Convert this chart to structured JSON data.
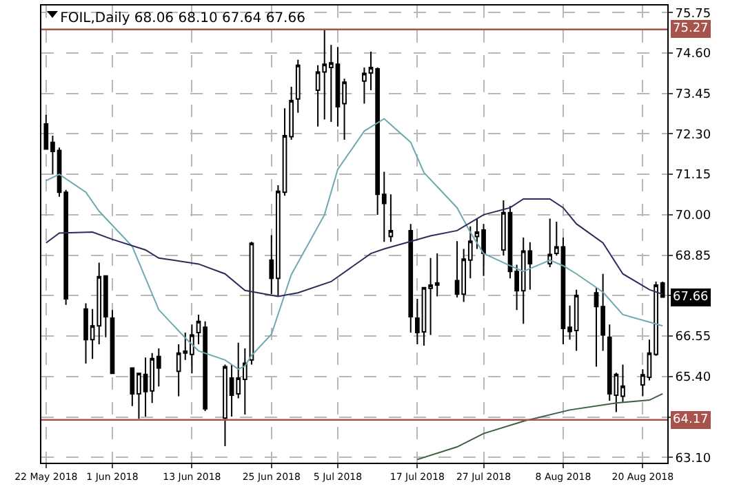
{
  "chart_data": {
    "type": "candlestick",
    "title": "FOIL,Daily 68.06 68.10 67.64 67.66",
    "x": [
      "2018-05-22",
      "2018-05-23",
      "2018-05-24",
      "2018-05-25",
      "2018-05-28",
      "2018-05-29",
      "2018-05-30",
      "2018-05-31",
      "2018-06-01",
      "2018-06-04",
      "2018-06-05",
      "2018-06-06",
      "2018-06-07",
      "2018-06-08",
      "2018-06-11",
      "2018-06-12",
      "2018-06-13",
      "2018-06-14",
      "2018-06-15",
      "2018-06-18",
      "2018-06-19",
      "2018-06-20",
      "2018-06-21",
      "2018-06-22",
      "2018-06-25",
      "2018-06-26",
      "2018-06-27",
      "2018-06-28",
      "2018-06-29",
      "2018-07-02",
      "2018-07-03",
      "2018-07-04",
      "2018-07-05",
      "2018-07-06",
      "2018-07-09",
      "2018-07-10",
      "2018-07-11",
      "2018-07-12",
      "2018-07-13",
      "2018-07-16",
      "2018-07-17",
      "2018-07-18",
      "2018-07-19",
      "2018-07-20",
      "2018-07-23",
      "2018-07-24",
      "2018-07-25",
      "2018-07-26",
      "2018-07-27",
      "2018-07-30",
      "2018-07-31",
      "2018-08-01",
      "2018-08-02",
      "2018-08-03",
      "2018-08-06",
      "2018-08-07",
      "2018-08-08",
      "2018-08-09",
      "2018-08-10",
      "2018-08-13",
      "2018-08-14",
      "2018-08-15",
      "2018-08-16",
      "2018-08-17",
      "2018-08-20",
      "2018-08-21",
      "2018-08-22",
      "2018-08-23"
    ],
    "ohlc": [
      [
        72.58,
        72.84,
        71.85,
        71.87
      ],
      [
        72.06,
        72.25,
        71.16,
        71.8
      ],
      [
        71.83,
        71.91,
        70.51,
        70.64
      ],
      [
        70.64,
        70.71,
        67.44,
        67.61
      ],
      [
        67.32,
        67.48,
        65.77,
        66.45
      ],
      [
        66.45,
        67.32,
        65.9,
        66.84
      ],
      [
        66.84,
        68.64,
        66.32,
        68.24
      ],
      [
        68.26,
        68.26,
        66.52,
        67.1
      ],
      [
        67.06,
        67.29,
        65.49,
        65.49
      ],
      [
        65.64,
        65.64,
        64.56,
        64.91
      ],
      [
        64.91,
        65.51,
        64.2,
        65.49
      ],
      [
        65.46,
        65.94,
        64.26,
        64.97
      ],
      [
        64.99,
        66.07,
        64.65,
        65.91
      ],
      [
        65.97,
        66.2,
        65.12,
        65.64
      ],
      [
        65.55,
        66.32,
        64.84,
        66.07
      ],
      [
        66.07,
        66.65,
        65.87,
        66.12
      ],
      [
        66.03,
        66.88,
        65.49,
        66.58
      ],
      [
        66.65,
        67.16,
        66.32,
        66.97
      ],
      [
        66.8,
        66.97,
        64.42,
        64.48
      ],
      [
        64.22,
        65.74,
        63.42,
        65.68
      ],
      [
        65.36,
        65.74,
        64.26,
        64.87
      ],
      [
        64.91,
        66.36,
        64.78,
        65.36
      ],
      [
        65.32,
        66.2,
        64.32,
        65.78
      ],
      [
        65.87,
        69.23,
        65.74,
        69.19
      ],
      [
        68.71,
        69.42,
        67.74,
        68.19
      ],
      [
        68.19,
        70.84,
        67.68,
        70.67
      ],
      [
        70.64,
        73.03,
        70.54,
        72.25
      ],
      [
        72.22,
        73.64,
        72.13,
        73.25
      ],
      [
        73.29,
        74.41,
        72.9,
        74.25
      ],
      [
        73.54,
        74.25,
        72.51,
        74.06
      ],
      [
        74.06,
        75.26,
        72.71,
        74.28
      ],
      [
        74.19,
        74.83,
        72.64,
        74.32
      ],
      [
        74.28,
        74.77,
        72.51,
        73.07
      ],
      [
        73.16,
        73.87,
        72.13,
        73.77
      ],
      [
        73.8,
        74.19,
        73.16,
        74.02
      ],
      [
        74.03,
        74.64,
        73.54,
        74.19
      ],
      [
        74.15,
        74.19,
        70.0,
        70.58
      ],
      [
        70.58,
        71.22,
        69.23,
        70.32
      ],
      [
        69.38,
        70.58,
        69.23,
        69.55
      ],
      [
        69.55,
        69.74,
        66.65,
        67.1
      ],
      [
        67.06,
        67.61,
        66.32,
        66.65
      ],
      [
        66.67,
        67.93,
        66.28,
        67.93
      ],
      [
        67.91,
        68.77,
        66.58,
        68.0
      ],
      [
        68.0,
        68.9,
        67.68,
        68.06
      ],
      [
        68.13,
        69.25,
        67.65,
        67.74
      ],
      [
        67.74,
        69.03,
        67.52,
        68.74
      ],
      [
        68.71,
        69.67,
        68.19,
        69.25
      ],
      [
        69.38,
        69.89,
        69.03,
        69.51
      ],
      [
        69.57,
        69.74,
        68.26,
        68.9
      ],
      [
        69.0,
        70.41,
        68.84,
        70.06
      ],
      [
        70.06,
        70.25,
        68.19,
        68.39
      ],
      [
        68.39,
        68.58,
        67.29,
        67.84
      ],
      [
        67.84,
        69.35,
        66.9,
        68.97
      ],
      [
        68.97,
        69.22,
        67.87,
        68.61
      ],
      [
        68.61,
        69.89,
        68.51,
        68.87
      ],
      [
        68.9,
        69.8,
        68.84,
        69.09
      ],
      [
        69.09,
        69.35,
        66.32,
        66.77
      ],
      [
        66.8,
        67.42,
        66.45,
        66.68
      ],
      [
        66.71,
        67.87,
        66.13,
        67.71
      ],
      [
        67.78,
        67.93,
        65.68,
        67.39
      ],
      [
        67.39,
        68.32,
        66.13,
        66.58
      ],
      [
        66.52,
        66.88,
        64.71,
        64.91
      ],
      [
        64.87,
        65.51,
        64.39,
        65.46
      ],
      [
        64.84,
        65.74,
        64.68,
        65.13
      ],
      [
        65.16,
        65.61,
        64.84,
        65.45
      ],
      [
        65.38,
        66.45,
        65.29,
        66.07
      ],
      [
        66.03,
        68.1,
        65.99,
        68.0
      ],
      [
        68.06,
        68.1,
        67.64,
        67.66
      ]
    ],
    "series": [
      {
        "type": "line",
        "color": "#6fa8b0",
        "x": [
          "2018-05-22",
          "2018-05-24",
          "2018-05-28",
          "2018-05-30",
          "2018-06-04",
          "2018-06-06",
          "2018-06-08",
          "2018-06-12",
          "2018-06-14",
          "2018-06-18",
          "2018-06-20",
          "2018-06-21",
          "2018-06-22",
          "2018-06-25",
          "2018-06-28",
          "2018-07-03",
          "2018-07-05",
          "2018-07-09",
          "2018-07-12",
          "2018-07-16",
          "2018-07-18",
          "2018-07-23",
          "2018-07-25",
          "2018-07-27",
          "2018-07-31",
          "2018-08-02",
          "2018-08-06",
          "2018-08-08",
          "2018-08-10",
          "2018-08-14",
          "2018-08-17",
          "2018-08-21",
          "2018-08-23"
        ],
        "values": [
          70.97,
          71.15,
          70.64,
          70.1,
          69.1,
          68.2,
          67.3,
          66.5,
          66.13,
          65.87,
          65.61,
          65.7,
          66.0,
          66.6,
          68.3,
          70.0,
          71.29,
          72.38,
          72.73,
          72.06,
          71.2,
          70.2,
          69.5,
          68.9,
          68.55,
          68.39,
          68.71,
          68.55,
          68.32,
          67.8,
          67.16,
          66.95,
          66.84
        ]
      },
      {
        "type": "line",
        "color": "#2b2b5c",
        "x": [
          "2018-05-22",
          "2018-05-24",
          "2018-05-29",
          "2018-06-01",
          "2018-06-06",
          "2018-06-08",
          "2018-06-14",
          "2018-06-18",
          "2018-06-21",
          "2018-06-26",
          "2018-06-29",
          "2018-07-04",
          "2018-07-10",
          "2018-07-12",
          "2018-07-19",
          "2018-07-23",
          "2018-07-27",
          "2018-07-31",
          "2018-08-02",
          "2018-08-06",
          "2018-08-08",
          "2018-08-10",
          "2018-08-14",
          "2018-08-17",
          "2018-08-21",
          "2018-08-23"
        ],
        "values": [
          69.2,
          69.48,
          69.51,
          69.3,
          69.0,
          68.77,
          68.6,
          68.32,
          67.85,
          67.68,
          67.78,
          68.1,
          68.9,
          69.03,
          69.4,
          69.55,
          70.0,
          70.2,
          70.45,
          70.45,
          70.2,
          69.74,
          69.2,
          68.32,
          67.87,
          67.74
        ]
      },
      {
        "type": "line",
        "color": "#3d5e40",
        "x": [
          "2018-07-17",
          "2018-07-23",
          "2018-07-27",
          "2018-08-02",
          "2018-08-09",
          "2018-08-16",
          "2018-08-21",
          "2018-08-23"
        ],
        "values": [
          63.04,
          63.4,
          63.78,
          64.13,
          64.45,
          64.65,
          64.73,
          64.91
        ]
      }
    ],
    "xlim": [
      "2018-05-21T07:00",
      "2018-08-23T17:00"
    ],
    "xticks": [
      {
        "value": "2018-05-22",
        "label": "22 May 2018"
      },
      {
        "value": "2018-06-01",
        "label": "1 Jun 2018"
      },
      {
        "value": "2018-06-13",
        "label": "13 Jun 2018"
      },
      {
        "value": "2018-06-25",
        "label": "25 Jun 2018"
      },
      {
        "value": "2018-07-05",
        "label": "5 Jul 2018"
      },
      {
        "value": "2018-07-17",
        "label": "17 Jul 2018"
      },
      {
        "value": "2018-07-27",
        "label": "27 Jul 2018"
      },
      {
        "value": "2018-08-08",
        "label": "8 Aug 2018"
      },
      {
        "value": "2018-08-20",
        "label": "20 Aug 2018"
      }
    ],
    "ylim": [
      62.95,
      75.95
    ],
    "yticks": [
      {
        "value": 63.1,
        "label": "63.10"
      },
      {
        "value": 64.25,
        "label": null
      },
      {
        "value": 65.4,
        "label": "65.40"
      },
      {
        "value": 66.55,
        "label": "66.55"
      },
      {
        "value": 67.7,
        "label": null
      },
      {
        "value": 68.85,
        "label": "68.85"
      },
      {
        "value": 70,
        "label": "70.00"
      },
      {
        "value": 71.15,
        "label": "71.15"
      },
      {
        "value": 72.3,
        "label": "72.30"
      },
      {
        "value": 73.45,
        "label": "73.45"
      },
      {
        "value": 74.6,
        "label": "74.60"
      },
      {
        "value": 75.75,
        "label": "75.75"
      }
    ],
    "ref_lines": [
      {
        "axis": "y",
        "value": 75.27,
        "label": "75.27",
        "color": "#a8524c"
      },
      {
        "axis": "y",
        "value": 64.17,
        "label": "64.17",
        "color": "#a8524c"
      }
    ],
    "annotations": [
      {
        "text": "67.66",
        "y": 67.66
      }
    ],
    "grid": true
  }
}
